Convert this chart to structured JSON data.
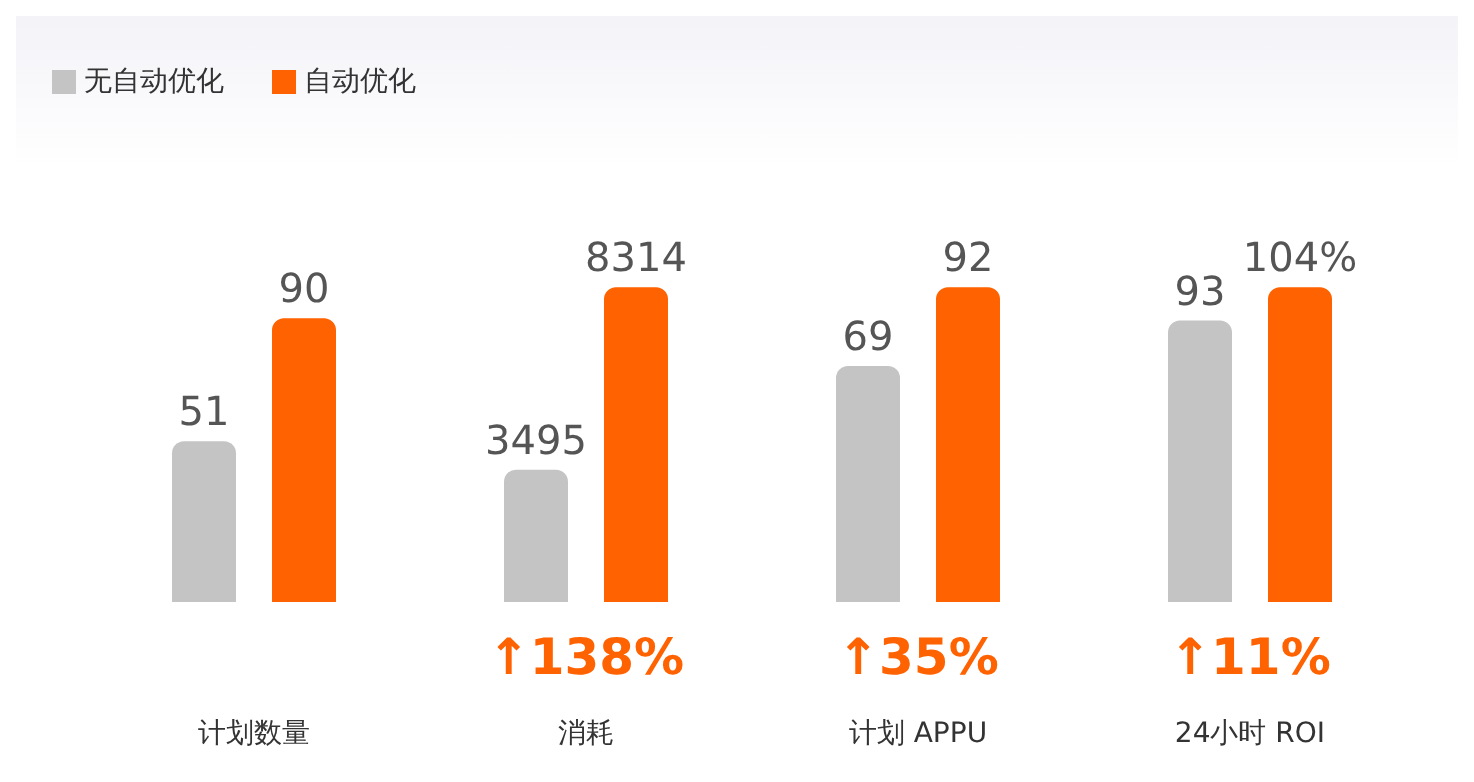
{
  "chart_data": [
    {
      "type": "bar",
      "categories": [
        "计划数量"
      ],
      "legend": "top left",
      "data_labels": true,
      "series": [
        {
          "name": "无自动优化",
          "color": "#c4c4c4",
          "values": [
            51
          ]
        },
        {
          "name": "自动优化",
          "color": "#ff6200",
          "values": [
            90
          ]
        }
      ]
    },
    {
      "type": "bar",
      "categories": [
        "消耗"
      ],
      "data_labels": true,
      "annotations": [
        "↑138%"
      ],
      "series": [
        {
          "color": "#c4c4c4",
          "values": [
            3495
          ]
        },
        {
          "color": "#ff6200",
          "values": [
            8314
          ]
        }
      ]
    },
    {
      "type": "bar",
      "categories": [
        "计划 APPU"
      ],
      "data_labels": true,
      "annotations": [
        "↑35%"
      ],
      "series": [
        {
          "color": "#c4c4c4",
          "values": [
            69
          ]
        },
        {
          "color": "#ff6200",
          "values": [
            92
          ]
        }
      ]
    },
    {
      "type": "bar",
      "categories": [
        "24小时 ROI"
      ],
      "data_labels": true,
      "annotations": [
        "↑11%"
      ],
      "series": [
        {
          "color": "#c4c4c4",
          "values": [
            93
          ]
        },
        {
          "color": "#ff6200",
          "values": [
            104
          ],
          "value_labels": [
            "104%"
          ]
        }
      ]
    }
  ]
}
